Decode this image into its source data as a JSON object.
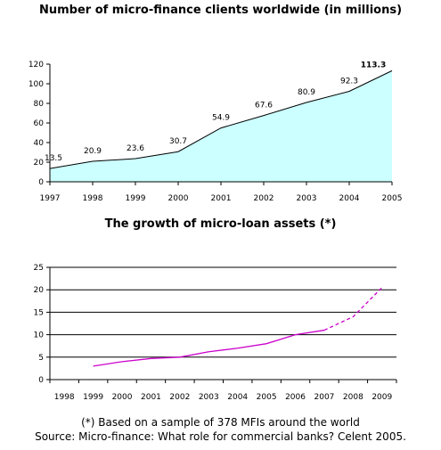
{
  "chart_data": [
    {
      "type": "area",
      "title": "Number of micro-finance clients worldwide (in millions)",
      "xlabel": "",
      "ylabel": "",
      "x": [
        "1997",
        "1998",
        "1999",
        "2000",
        "2001",
        "2002",
        "2003",
        "2004",
        "2005"
      ],
      "values": [
        13.5,
        20.9,
        23.6,
        30.7,
        54.9,
        67.6,
        80.9,
        92.3,
        113.3
      ],
      "data_labels": [
        "13.5",
        "20.9",
        "23.6",
        "30.7",
        "54.9",
        "67.6",
        "80.9",
        "92.3",
        "113.3"
      ],
      "y_ticks": [
        "0",
        "20",
        "40",
        "60",
        "80",
        "100",
        "120"
      ],
      "ylim": [
        0,
        120
      ],
      "grid": false,
      "fill_color": "#ccffff",
      "line_color": "#000000"
    },
    {
      "type": "line",
      "title": "The growth of micro-loan assets (*)",
      "xlabel": "",
      "ylabel": "",
      "categories": [
        "1998",
        "1999",
        "2000",
        "2001",
        "2002",
        "2003",
        "2004",
        "2005",
        "2006",
        "2007",
        "2008",
        "2009"
      ],
      "series": [
        {
          "style": "solid",
          "color": "#cc00cc",
          "x": [
            "1999",
            "2000",
            "2001",
            "2002",
            "2003",
            "2004",
            "2005",
            "2006",
            "2007"
          ],
          "values": [
            3,
            4,
            4.7,
            5,
            6.2,
            7,
            8,
            10,
            11
          ]
        },
        {
          "style": "dashed",
          "color": "#cc00cc",
          "x": [
            "2007",
            "2008",
            "2009"
          ],
          "values": [
            11,
            14,
            20.5
          ]
        }
      ],
      "y_ticks": [
        "0",
        "5",
        "10",
        "15",
        "20",
        "25"
      ],
      "ylim": [
        0,
        25
      ],
      "grid": true
    }
  ],
  "notes": {
    "footnote": "(*) Based on a sample of 378 MFIs around the world",
    "source": "Source: Micro-finance: What role for commercial banks? Celent 2005."
  }
}
